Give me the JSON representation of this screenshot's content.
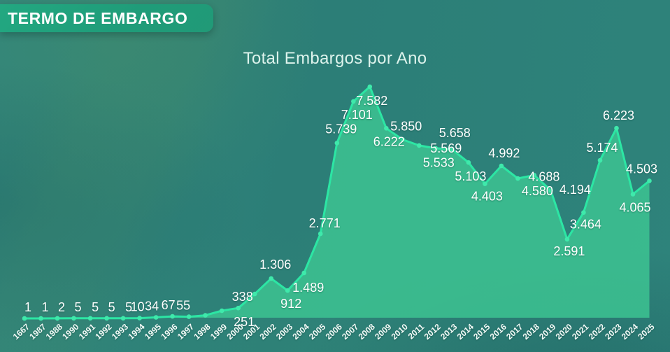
{
  "header": {
    "title": "TERMO DE EMBARGO"
  },
  "chart": {
    "title": "Total Embargos por Ano"
  },
  "colors": {
    "background": "#2e8078",
    "header_badge": "#1f9c79",
    "line": "#2ce6a4",
    "marker": "#3fe9ab",
    "area_fill": "rgba(61,198,146,0.82)",
    "data_label": "#ffffff",
    "axis_label": "#f3fbf8",
    "title": "#ddf3ec"
  },
  "chart_data": {
    "type": "area",
    "title": "Total Embargos por Ano",
    "xlabel": "",
    "ylabel": "",
    "ylim": [
      0,
      7600
    ],
    "grid": false,
    "legend": "none",
    "x": [
      "1667",
      "1987",
      "1988",
      "1990",
      "1991",
      "1992",
      "1993",
      "1994",
      "1995",
      "1996",
      "1997",
      "1998",
      "1999",
      "2000",
      "2001",
      "2002",
      "2003",
      "2004",
      "2005",
      "2006",
      "2007",
      "2008",
      "2009",
      "2010",
      "2011",
      "2012",
      "2013",
      "2014",
      "2015",
      "2016",
      "2017",
      "2018",
      "2019",
      "2020",
      "2021",
      "2022",
      "2023",
      "2024",
      "2025"
    ],
    "values": [
      1,
      1,
      2,
      5,
      5,
      5,
      5,
      10,
      34,
      67,
      55,
      100,
      251,
      338,
      800,
      1306,
      912,
      1489,
      2771,
      5739,
      7101,
      7582,
      6222,
      5850,
      5658,
      5569,
      5533,
      5103,
      4403,
      4992,
      4580,
      4688,
      4194,
      2591,
      3464,
      5174,
      6223,
      4065,
      4503
    ],
    "labels": [
      "1",
      "1",
      "2",
      "5",
      "5",
      "5",
      "5",
      "10",
      "34",
      "67",
      "55",
      "",
      "251",
      "338",
      "",
      "1.306",
      "912",
      "1.489",
      "2.771",
      "5.739",
      "7.101",
      "7.582",
      "6.222",
      "5.850",
      "5.658",
      "5.569",
      "5.533",
      "5.103",
      "4.403",
      "4.992",
      "4.580",
      "4.688",
      "4.194",
      "2.591",
      "3.464",
      "5.174",
      "6.223",
      "4.065",
      "4.503"
    ]
  }
}
